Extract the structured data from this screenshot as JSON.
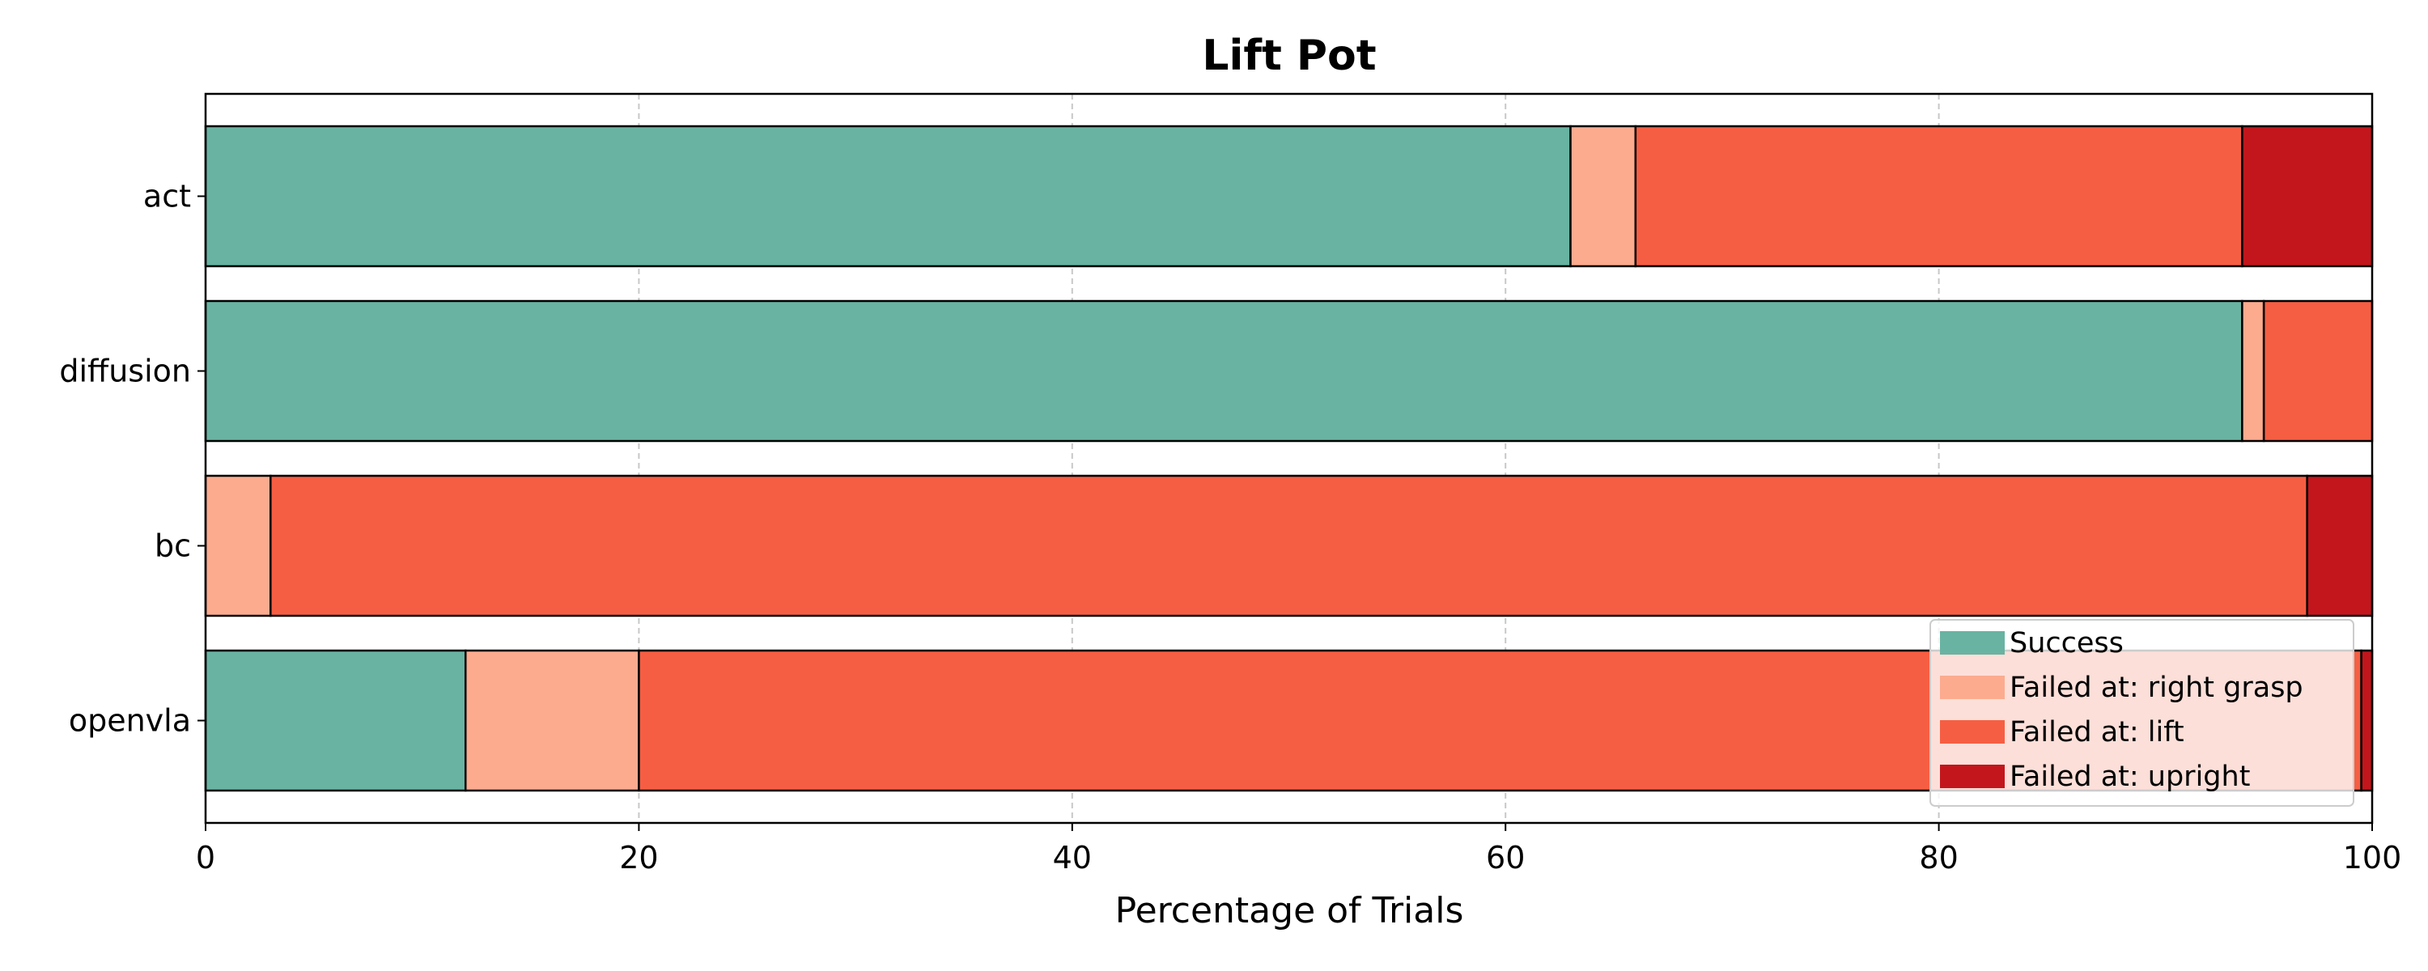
{
  "chart_data": {
    "type": "bar",
    "orientation": "horizontal",
    "stacked": true,
    "title": "Lift Pot",
    "xlabel": "Percentage of Trials",
    "ylabel": "",
    "xlim": [
      0,
      100
    ],
    "xticks": [
      "0",
      "20",
      "40",
      "60",
      "80",
      "100"
    ],
    "grid": "x-dashed",
    "legend_position": "lower-right",
    "categories": [
      "act",
      "diffusion",
      "bc",
      "openvla"
    ],
    "series": [
      {
        "name": "Success",
        "color": "#69b3a2",
        "values": [
          63,
          94,
          0,
          12
        ]
      },
      {
        "name": "Failed at: right grasp",
        "color": "#fcab8f",
        "values": [
          3,
          1,
          3,
          8
        ]
      },
      {
        "name": "Failed at: lift",
        "color": "#f65e43",
        "values": [
          28,
          5,
          94,
          79.5
        ]
      },
      {
        "name": "Failed at: upright",
        "color": "#c3161c",
        "values": [
          6,
          0,
          3,
          0.5
        ]
      }
    ]
  }
}
